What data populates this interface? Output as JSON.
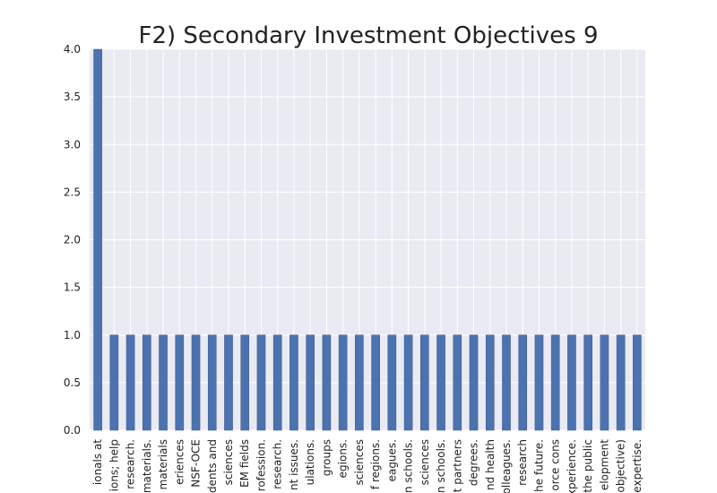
{
  "chart_data": {
    "type": "bar",
    "title": "F2) Secondary Investment Objectives 9",
    "xlabel": "",
    "ylabel": "",
    "ylim": [
      0,
      4.0
    ],
    "yticks": [
      "0.0",
      "0.5",
      "1.0",
      "1.5",
      "2.0",
      "2.5",
      "3.0",
      "3.5",
      "4.0"
    ],
    "grid": true,
    "bar_color": "#4c72b0",
    "plot_bg": "#eaeaf2",
    "grid_color": "#ffffff",
    "categories": [
      "ionals at",
      "ions; help",
      "research.",
      "materials.",
      "materials",
      "eriences",
      "NSF-OCE",
      "dents and",
      "sciences",
      "EM fields",
      "rofession.",
      "research.",
      "nt issues.",
      "ulations.",
      "groups",
      "egions.",
      "sciences",
      "f regions.",
      "eagues.",
      "n schools.",
      "sciences",
      "n schools.",
      "t partners",
      "degrees.",
      "nd health",
      "olleagues.",
      "research",
      "he future.",
      "orce cons",
      "xperience.",
      "the public",
      "elopment",
      "objective)",
      "expertise."
    ],
    "values": [
      4,
      1,
      1,
      1,
      1,
      1,
      1,
      1,
      1,
      1,
      1,
      1,
      1,
      1,
      1,
      1,
      1,
      1,
      1,
      1,
      1,
      1,
      1,
      1,
      1,
      1,
      1,
      1,
      1,
      1,
      1,
      1,
      1,
      1
    ]
  }
}
